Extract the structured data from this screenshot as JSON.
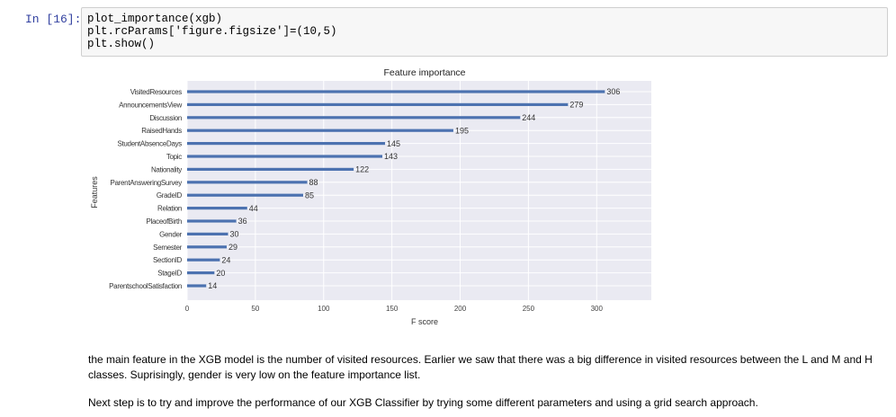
{
  "cell": {
    "prompt": "In [16]:",
    "code_lines": [
      "plot_importance(xgb)",
      "plt.rcParams['figure.figsize']=(10,5)",
      "plt.show()"
    ]
  },
  "chart_data": {
    "type": "bar",
    "orientation": "horizontal",
    "title": "Feature importance",
    "xlabel": "F score",
    "ylabel": "Features",
    "xlim": [
      0,
      340
    ],
    "xticks": [
      0,
      50,
      100,
      150,
      200,
      250,
      300
    ],
    "grid": true,
    "bar_color": "#4c72b0",
    "background": "#eaeaf2",
    "categories": [
      "VisitedResources",
      "AnnouncementsView",
      "Discussion",
      "RaisedHands",
      "StudentAbsenceDays",
      "Topic",
      "Nationality",
      "ParentAnsweringSurvey",
      "GradeID",
      "Relation",
      "PlaceofBirth",
      "Gender",
      "Semester",
      "SectionID",
      "StageID",
      "ParentschoolSatisfaction"
    ],
    "values": [
      306,
      279,
      244,
      195,
      145,
      143,
      122,
      88,
      85,
      44,
      36,
      30,
      29,
      24,
      20,
      14
    ]
  },
  "markdown": {
    "p1": "the main feature in the XGB model is the number of visited resources. Earlier we saw that there was a big difference in visited resources between the L and M and H classes. Suprisingly, gender is very low on the feature importance list.",
    "p2": "Next step is to try and improve the performance of our XGB Classifier by trying some different parameters and using a grid search approach."
  }
}
